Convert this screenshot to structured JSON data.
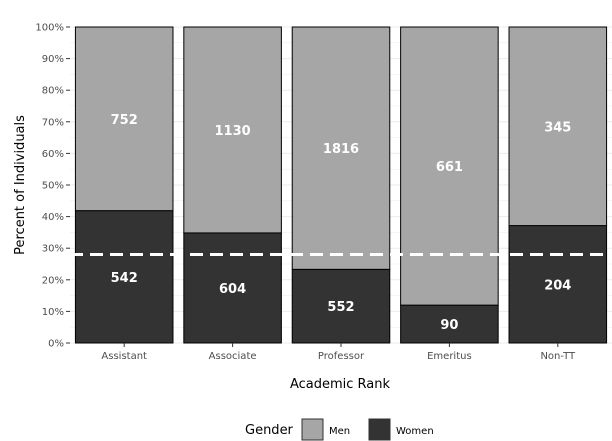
{
  "chart_data": {
    "type": "bar",
    "stacked": true,
    "normalized": true,
    "categories": [
      "Assistant",
      "Associate",
      "Professor",
      "Emeritus",
      "Non-TT"
    ],
    "series": [
      {
        "name": "Women",
        "values": [
          542,
          604,
          552,
          90,
          204
        ],
        "color": "#333333"
      },
      {
        "name": "Men",
        "values": [
          752,
          1130,
          1816,
          661,
          345
        ],
        "color": "#a6a6a6"
      }
    ],
    "reference_line": {
      "value": 0.28,
      "style": "dashed",
      "color": "#ffffff"
    },
    "xlabel": "Academic Rank",
    "ylabel": "Percent of Individuals",
    "ylim": [
      0,
      1
    ],
    "yticks": [
      "0%",
      "10%",
      "20%",
      "30%",
      "40%",
      "50%",
      "60%",
      "70%",
      "80%",
      "90%",
      "100%"
    ],
    "grid": true,
    "legend": {
      "title": "Gender",
      "position": "bottom",
      "entries": [
        "Men",
        "Women"
      ]
    }
  }
}
